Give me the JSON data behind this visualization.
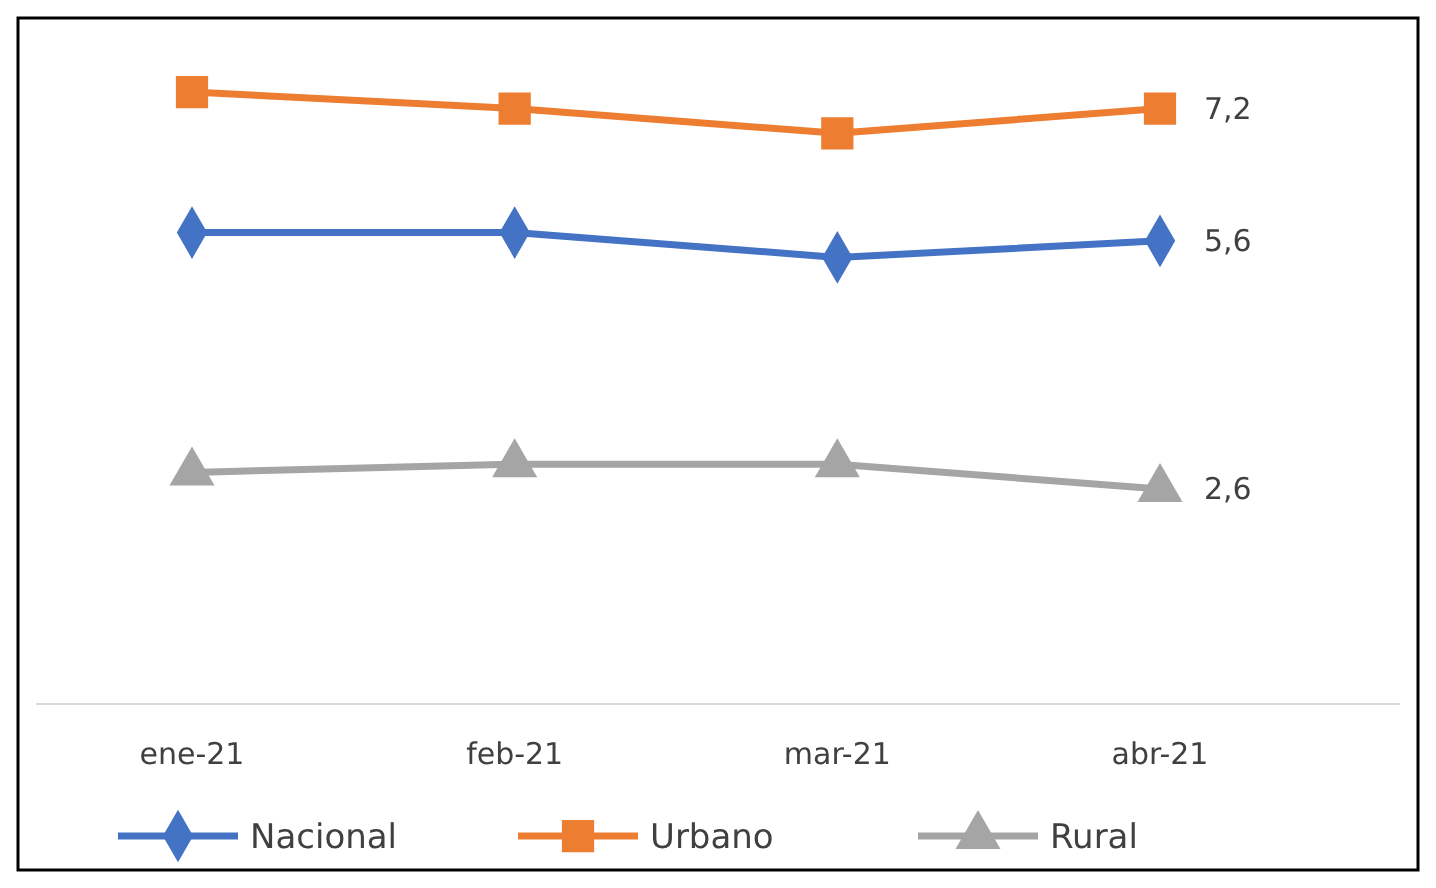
{
  "chart_data": {
    "type": "line",
    "categories": [
      "ene-21",
      "feb-21",
      "mar-21",
      "abr-21"
    ],
    "tick_labels": "x",
    "legend": "bottom",
    "series": [
      {
        "name": "Nacional",
        "color": "#4472c4",
        "marker": "diamond",
        "values": [
          5.7,
          5.7,
          5.4,
          5.6
        ],
        "value_labels": [
          null,
          null,
          null,
          "5,6"
        ]
      },
      {
        "name": "Urbano",
        "color": "#ed7d31",
        "marker": "square",
        "values": [
          7.4,
          7.2,
          6.9,
          7.2
        ],
        "value_labels": [
          null,
          null,
          null,
          "7,2"
        ]
      },
      {
        "name": "Rural",
        "color": "#a5a5a5",
        "marker": "triangle",
        "values": [
          2.8,
          2.9,
          2.9,
          2.6
        ],
        "value_labels": [
          null,
          null,
          null,
          "2,6"
        ]
      }
    ]
  }
}
